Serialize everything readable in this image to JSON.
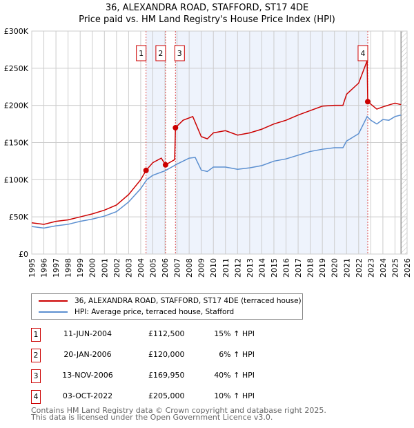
{
  "title": "36, ALEXANDRA ROAD, STAFFORD, ST17 4DE",
  "subtitle": "Price paid vs. HM Land Registry's House Price Index (HPI)",
  "chart_data": {
    "type": "line",
    "ylim": [
      0,
      300000
    ],
    "xlim": [
      1995,
      2026
    ],
    "y_ticks": [
      {
        "v": 0,
        "label": "£0"
      },
      {
        "v": 50000,
        "label": "£50K"
      },
      {
        "v": 100000,
        "label": "£100K"
      },
      {
        "v": 150000,
        "label": "£150K"
      },
      {
        "v": 200000,
        "label": "£200K"
      },
      {
        "v": 250000,
        "label": "£250K"
      },
      {
        "v": 300000,
        "label": "£300K"
      }
    ],
    "x_ticks": [
      "1995",
      "1996",
      "1997",
      "1998",
      "1999",
      "2000",
      "2001",
      "2002",
      "2003",
      "2004",
      "2005",
      "2006",
      "2007",
      "2008",
      "2009",
      "2010",
      "2011",
      "2012",
      "2013",
      "2014",
      "2015",
      "2016",
      "2017",
      "2018",
      "2019",
      "2020",
      "2021",
      "2022",
      "2023",
      "2024",
      "2025",
      "2026"
    ],
    "grid": true,
    "shaded_ranges": [
      [
        2004.44,
        2006.05
      ],
      [
        2006.87,
        2022.75
      ]
    ],
    "forecast_from": 2025.5,
    "series": [
      {
        "name": "36, ALEXANDRA ROAD, STAFFORD, ST17 4DE (terraced house)",
        "color": "#cc0000",
        "points": [
          [
            1995,
            42000
          ],
          [
            1996,
            40000
          ],
          [
            1997,
            44000
          ],
          [
            1998,
            46000
          ],
          [
            1999,
            50000
          ],
          [
            2000,
            54000
          ],
          [
            2001,
            59000
          ],
          [
            2002,
            66000
          ],
          [
            2003,
            80000
          ],
          [
            2004,
            100000
          ],
          [
            2004.44,
            112500
          ],
          [
            2005,
            123000
          ],
          [
            2005.7,
            129000
          ],
          [
            2006.05,
            120000
          ],
          [
            2006.8,
            127000
          ],
          [
            2006.87,
            169950
          ],
          [
            2007.5,
            180000
          ],
          [
            2008.3,
            185000
          ],
          [
            2009,
            158000
          ],
          [
            2009.5,
            155000
          ],
          [
            2010,
            163000
          ],
          [
            2011,
            166000
          ],
          [
            2012,
            160000
          ],
          [
            2013,
            163000
          ],
          [
            2014,
            168000
          ],
          [
            2015,
            175000
          ],
          [
            2016,
            180000
          ],
          [
            2017,
            187000
          ],
          [
            2018,
            193000
          ],
          [
            2019,
            199000
          ],
          [
            2020,
            200000
          ],
          [
            2020.7,
            200000
          ],
          [
            2021,
            215000
          ],
          [
            2022,
            230000
          ],
          [
            2022.7,
            260000
          ],
          [
            2022.75,
            205000
          ],
          [
            2023.5,
            195000
          ],
          [
            2024,
            198000
          ],
          [
            2025,
            203000
          ],
          [
            2025.5,
            201000
          ]
        ]
      },
      {
        "name": "HPI: Average price, terraced house, Stafford",
        "color": "#5b8fd0",
        "points": [
          [
            1995,
            37000
          ],
          [
            1996,
            35000
          ],
          [
            1997,
            38000
          ],
          [
            1998,
            40000
          ],
          [
            1999,
            44000
          ],
          [
            2000,
            47000
          ],
          [
            2001,
            51000
          ],
          [
            2002,
            57000
          ],
          [
            2003,
            70000
          ],
          [
            2004,
            88000
          ],
          [
            2004.5,
            100000
          ],
          [
            2005,
            106000
          ],
          [
            2006,
            112000
          ],
          [
            2007,
            121000
          ],
          [
            2008,
            129000
          ],
          [
            2008.5,
            130000
          ],
          [
            2009,
            113000
          ],
          [
            2009.5,
            111000
          ],
          [
            2010,
            117000
          ],
          [
            2011,
            117000
          ],
          [
            2012,
            114000
          ],
          [
            2013,
            116000
          ],
          [
            2014,
            119000
          ],
          [
            2015,
            125000
          ],
          [
            2016,
            128000
          ],
          [
            2017,
            133000
          ],
          [
            2018,
            138000
          ],
          [
            2019,
            141000
          ],
          [
            2020,
            143000
          ],
          [
            2020.7,
            143000
          ],
          [
            2021,
            152000
          ],
          [
            2022,
            162000
          ],
          [
            2022.7,
            185000
          ],
          [
            2023,
            180000
          ],
          [
            2023.5,
            175000
          ],
          [
            2024,
            181000
          ],
          [
            2024.5,
            180000
          ],
          [
            2025,
            185000
          ],
          [
            2025.5,
            187000
          ]
        ]
      }
    ],
    "sales": [
      {
        "id": "1",
        "date": "11-JUN-2004",
        "x": 2004.44,
        "price": 112500,
        "price_label": "£112,500",
        "hpi": "15% ↑ HPI"
      },
      {
        "id": "2",
        "date": "20-JAN-2006",
        "x": 2006.05,
        "price": 120000,
        "price_label": "£120,000",
        "hpi": "6% ↑ HPI"
      },
      {
        "id": "3",
        "date": "13-NOV-2006",
        "x": 2006.87,
        "price": 169950,
        "price_label": "£169,950",
        "hpi": "40% ↑ HPI"
      },
      {
        "id": "4",
        "date": "03-OCT-2022",
        "x": 2022.75,
        "price": 205000,
        "price_label": "£205,000",
        "hpi": "10% ↑ HPI"
      }
    ]
  },
  "legend": {
    "property": "36, ALEXANDRA ROAD, STAFFORD, ST17 4DE (terraced house)",
    "hpi": "HPI: Average price, terraced house, Stafford"
  },
  "footer": {
    "line1": "Contains HM Land Registry data © Crown copyright and database right 2025.",
    "line2": "This data is licensed under the Open Government Licence v3.0."
  }
}
